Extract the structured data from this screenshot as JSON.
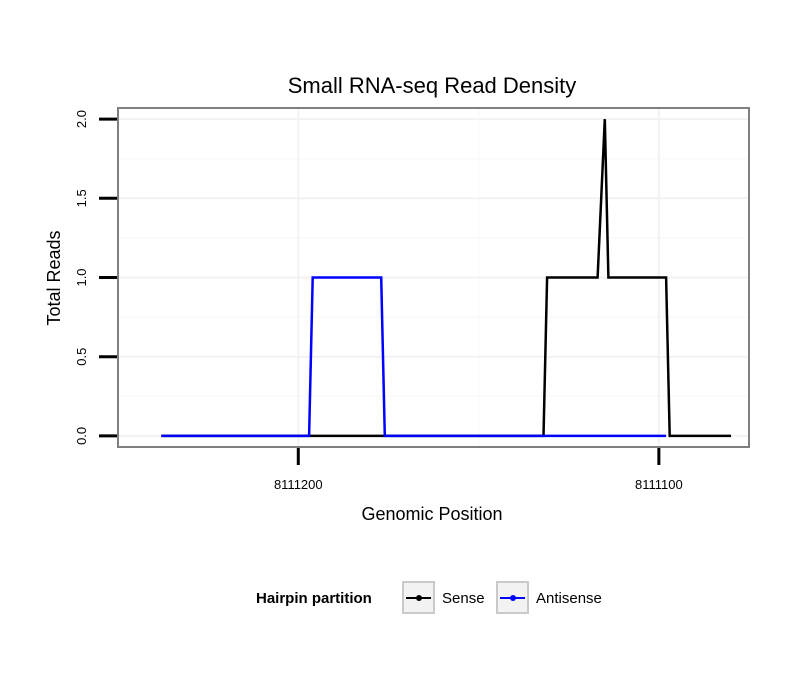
{
  "chart_data": {
    "type": "line",
    "title": "Small RNA-seq Read Density",
    "xlabel": "Genomic Position",
    "ylabel": "Total Reads",
    "x_reversed": true,
    "xlim": [
      8111250,
      8111075
    ],
    "ylim": [
      -0.07,
      2.07
    ],
    "x_ticks": [
      8111200,
      8111100
    ],
    "x_tick_labels": [
      "8111200",
      "8111100"
    ],
    "y_ticks": [
      0.0,
      0.5,
      1.0,
      1.5,
      2.0
    ],
    "y_tick_labels": [
      "0.0",
      "0.5",
      "1.0",
      "1.5",
      "2.0"
    ],
    "grid": true,
    "legend_title": "Hairpin partition",
    "legend_position": "bottom",
    "series": [
      {
        "name": "Sense",
        "color": "#000000",
        "x": [
          8111238,
          8111132,
          8111131,
          8111118,
          8111117,
          8111115,
          8111114,
          8111113,
          8111112,
          8111098,
          8111097,
          8111080
        ],
        "y": [
          0,
          0,
          1,
          1,
          1,
          2,
          1,
          1,
          1,
          1,
          0,
          0
        ]
      },
      {
        "name": "Antisense",
        "color": "#0000ff",
        "x": [
          8111238,
          8111197,
          8111196,
          8111177,
          8111176,
          8111098
        ],
        "y": [
          0,
          0,
          1,
          1,
          0,
          0
        ]
      }
    ]
  }
}
